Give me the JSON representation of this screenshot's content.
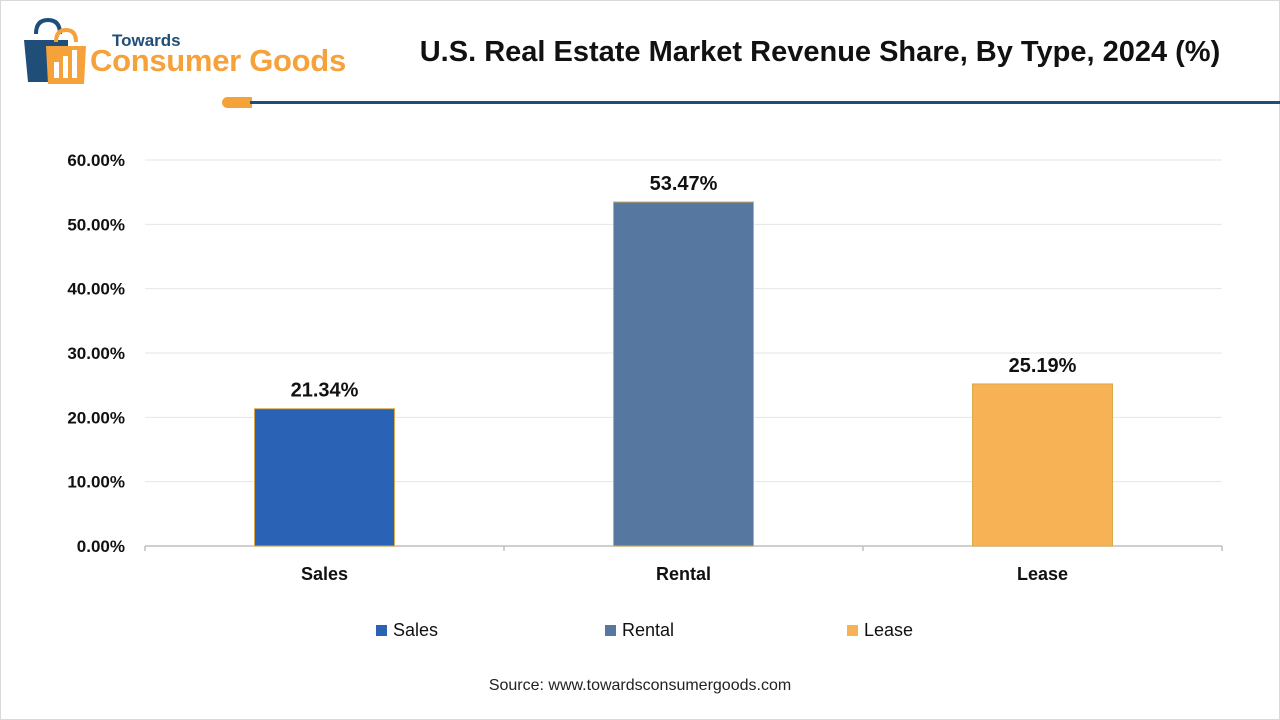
{
  "header": {
    "logo_small": "Towards",
    "logo_big": "Consumer Goods",
    "title": "U.S. Real Estate Market Revenue Share, By Type, 2024 (%)"
  },
  "colors": {
    "accent_orange": "#f5a23a",
    "accent_navy": "#1f4e79"
  },
  "chart_data": {
    "type": "bar",
    "categories": [
      "Sales",
      "Rental",
      "Lease"
    ],
    "values": [
      21.34,
      53.47,
      25.19
    ],
    "data_labels": [
      "21.34%",
      "53.47%",
      "25.19%"
    ],
    "colors": [
      "#2a62b5",
      "#5577a0",
      "#f7b255"
    ],
    "ylim": [
      0,
      60
    ],
    "yticks": [
      0,
      10,
      20,
      30,
      40,
      50,
      60
    ],
    "ytick_labels": [
      "0.00%",
      "10.00%",
      "20.00%",
      "30.00%",
      "40.00%",
      "50.00%",
      "60.00%"
    ],
    "grid": true,
    "legend_position": "bottom",
    "legend": [
      "Sales",
      "Rental",
      "Lease"
    ]
  },
  "footer": {
    "source": "Source: www.towardsconsumergoods.com"
  }
}
